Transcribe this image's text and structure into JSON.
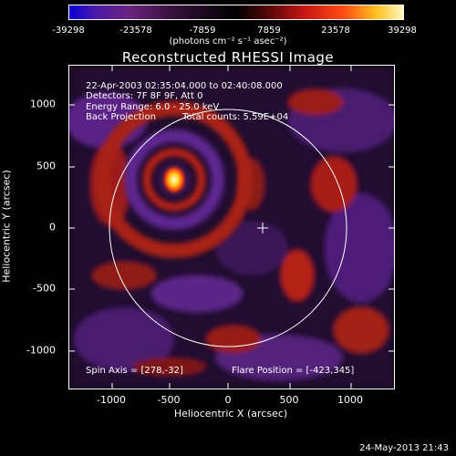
{
  "colorbar": {
    "ticks": [
      "-39298",
      "-23578",
      "-7859",
      "7859",
      "23578",
      "39298"
    ],
    "units": "(photons cm⁻² s⁻¹ asec⁻²)"
  },
  "title": "Reconstructed RHESSI Image",
  "info": {
    "time": "22-Apr-2003 02:35:04.000 to 02:40:08.000",
    "detectors": "Detectors: 7F 8F 9F, Att 0",
    "energy": "Energy Range: 6.0 - 25.0 keV",
    "method": "Back Projection",
    "counts": "Total counts: 5.59E+04",
    "spin_axis": "Spin Axis = [278,-32]",
    "flare_position": "Flare Position = [-423,345]"
  },
  "axes": {
    "xlabel": "Heliocentric X (arcsec)",
    "ylabel": "Heliocentric Y (arcsec)",
    "xticks": [
      "-1000",
      "-500",
      "0",
      "500",
      "1000"
    ],
    "yticks": [
      "1000",
      "500",
      "0",
      "-500",
      "-1000"
    ]
  },
  "footer_date": "24-May-2013 21:43",
  "colors": {
    "background": "#000000",
    "foreground": "#ffffff"
  }
}
